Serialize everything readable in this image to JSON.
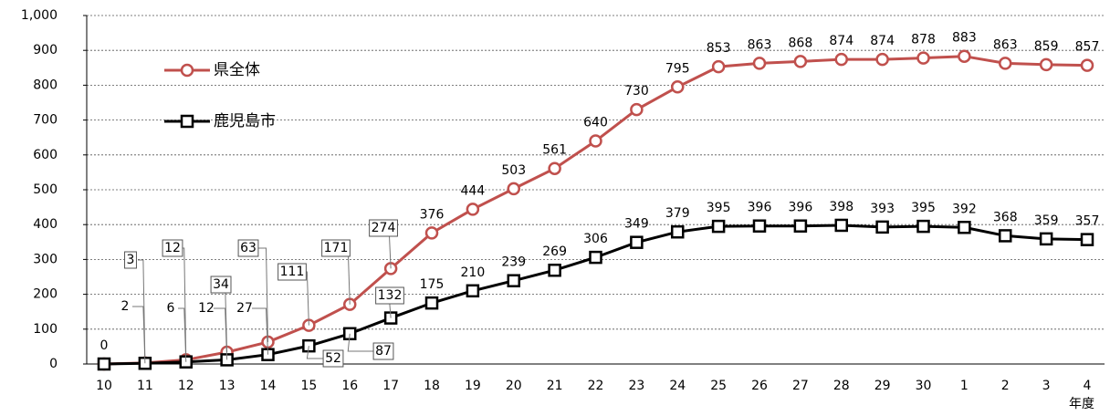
{
  "chart_data": {
    "type": "line",
    "categories": [
      "10",
      "11",
      "12",
      "13",
      "14",
      "15",
      "16",
      "17",
      "18",
      "19",
      "20",
      "21",
      "22",
      "23",
      "24",
      "25",
      "26",
      "27",
      "28",
      "29",
      "30",
      "1",
      "2",
      "3",
      "4"
    ],
    "x_label": "年度",
    "ylim": [
      0,
      1000
    ],
    "yticks": [
      0,
      100,
      200,
      300,
      400,
      500,
      600,
      700,
      800,
      900,
      {
        "value": 1000,
        "label": "1,000"
      }
    ],
    "grid": true,
    "legend": "upper left",
    "series": [
      {
        "name": "県全体",
        "color": "#c0504d",
        "marker": "circle",
        "values": [
          0,
          3,
          12,
          34,
          63,
          111,
          171,
          274,
          376,
          444,
          503,
          561,
          640,
          730,
          795,
          853,
          863,
          868,
          874,
          874,
          878,
          883,
          863,
          859,
          857
        ]
      },
      {
        "name": "鹿児島市",
        "color": "#000000",
        "marker": "square",
        "values": [
          0,
          2,
          6,
          12,
          27,
          52,
          87,
          132,
          175,
          210,
          239,
          269,
          306,
          349,
          379,
          395,
          396,
          396,
          398,
          393,
          395,
          392,
          368,
          359,
          357
        ],
        "value_labels": [
          null,
          "2",
          "6",
          "12",
          "27",
          "52",
          "87",
          "132",
          "175",
          "210",
          "239",
          "269",
          "306",
          "349",
          "379",
          "395",
          "396",
          "396",
          "398",
          "393",
          "395",
          "392",
          "368",
          "359",
          "357"
        ]
      }
    ]
  }
}
